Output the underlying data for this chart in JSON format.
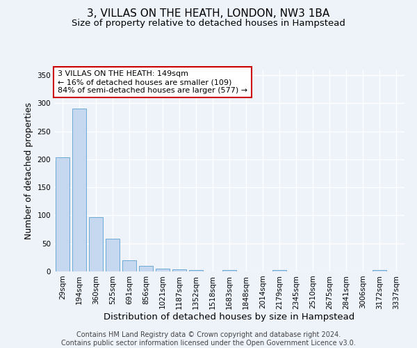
{
  "title": "3, VILLAS ON THE HEATH, LONDON, NW3 1BA",
  "subtitle": "Size of property relative to detached houses in Hampstead",
  "xlabel": "Distribution of detached houses by size in Hampstead",
  "ylabel": "Number of detached properties",
  "bin_labels": [
    "29sqm",
    "194sqm",
    "360sqm",
    "525sqm",
    "691sqm",
    "856sqm",
    "1021sqm",
    "1187sqm",
    "1352sqm",
    "1518sqm",
    "1683sqm",
    "1848sqm",
    "2014sqm",
    "2179sqm",
    "2345sqm",
    "2510sqm",
    "2675sqm",
    "2841sqm",
    "3006sqm",
    "3172sqm",
    "3337sqm"
  ],
  "bar_heights": [
    203,
    291,
    97,
    58,
    20,
    10,
    5,
    4,
    2,
    0,
    3,
    0,
    0,
    3,
    0,
    0,
    0,
    0,
    0,
    3,
    0
  ],
  "bar_color": "#c5d8f0",
  "bar_edge_color": "#6aaad4",
  "annotation_text": "3 VILLAS ON THE HEATH: 149sqm\n← 16% of detached houses are smaller (109)\n84% of semi-detached houses are larger (577) →",
  "annotation_box_color": "#ffffff",
  "annotation_box_edge_color": "#cc0000",
  "footer_text": "Contains HM Land Registry data © Crown copyright and database right 2024.\nContains public sector information licensed under the Open Government Licence v3.0.",
  "ylim": [
    0,
    360
  ],
  "yticks": [
    0,
    50,
    100,
    150,
    200,
    250,
    300,
    350
  ],
  "bg_color": "#eef2f9",
  "grid_color": "#ffffff",
  "title_fontsize": 11,
  "subtitle_fontsize": 9.5,
  "axis_label_fontsize": 9,
  "tick_fontsize": 7.5,
  "footer_fontsize": 7,
  "annotation_fontsize": 8
}
